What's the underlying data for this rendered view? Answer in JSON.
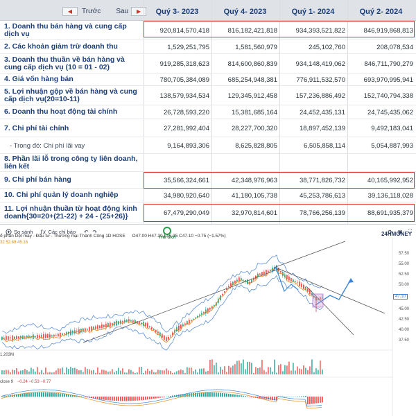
{
  "table": {
    "nav": {
      "prev_label": "Trước",
      "next_label": "Sau",
      "prev_icon": "left-triangle-icon",
      "next_icon": "right-triangle-icon"
    },
    "periods": [
      "Quý 3- 2023",
      "Quý 4- 2023",
      "Quý 1- 2024",
      "Quý 2- 2024"
    ],
    "rows": [
      {
        "label": "1. Doanh thu bán hàng và cung cấp dịch vụ",
        "values": [
          "920,814,570,418",
          "816,182,421,818",
          "934,393,521,822",
          "846,919,868,813"
        ],
        "highlight": true
      },
      {
        "label": "2. Các khoản giảm trừ doanh thu",
        "values": [
          "1,529,251,795",
          "1,581,560,979",
          "245,102,760",
          "208,078,534"
        ]
      },
      {
        "label": "3. Doanh thu thuần về bán hàng và cung cấp dịch vụ (10 = 01 - 02)",
        "values": [
          "919,285,318,623",
          "814,600,860,839",
          "934,148,419,062",
          "846,711,790,279"
        ]
      },
      {
        "label": "4. Giá vốn hàng bán",
        "values": [
          "780,705,384,089",
          "685,254,948,381",
          "776,911,532,570",
          "693,970,995,941"
        ]
      },
      {
        "label": "5. Lợi nhuận gộp về bán hàng và cung cấp dịch vụ(20=10-11)",
        "values": [
          "138,579,934,534",
          "129,345,912,458",
          "157,236,886,492",
          "152,740,794,338"
        ]
      },
      {
        "label": "6. Doanh thu hoạt động tài chính",
        "values": [
          "26,728,593,220",
          "15,381,685,164",
          "24,452,435,131",
          "24,745,435,062"
        ]
      },
      {
        "label": "7. Chi phí tài chính",
        "values": [
          "27,281,992,404",
          "28,227,700,320",
          "18,897,452,139",
          "9,492,183,041"
        ]
      },
      {
        "label": "- Trong đó: Chi phí lãi vay",
        "values": [
          "9,164,893,306",
          "8,625,828,805",
          "6,505,858,114",
          "5,054,887,993"
        ],
        "sub": true
      },
      {
        "label": "8. Phần lãi lỗ trong công ty liên doanh, liên kết",
        "values": [
          "",
          "",
          "",
          ""
        ]
      },
      {
        "label": "9. Chi phí bán hàng",
        "values": [
          "35,566,324,661",
          "42,348,976,963",
          "38,771,826,732",
          "40,165,992,952"
        ],
        "highlight": true
      },
      {
        "label": "10. Chi phí quản lý doanh nghiệp",
        "values": [
          "34,980,920,640",
          "41,180,105,738",
          "45,253,786,613",
          "39,136,118,028"
        ]
      },
      {
        "label": "11. Lợi nhuận thuần từ hoạt động kinh doanh{30=20+(21-22) + 24 - (25+26)}",
        "values": [
          "67,479,290,049",
          "32,970,814,601",
          "78,766,256,139",
          "88,691,935,379"
        ],
        "highlight": true
      }
    ]
  },
  "chart": {
    "toolbar": {
      "compare_label": "So sánh",
      "indicators_label": "Các chỉ báo",
      "compare_icon": "plus-circle-icon",
      "indicators_icon": "function-icon",
      "undo_icon": "undo-icon",
      "redo_icon": "redo-icon",
      "settings_icon": "gear-icon",
      "screenshot_icon": "camera-icon",
      "fullscreen_icon": "fullscreen-icon"
    },
    "brand": "24HMONEY",
    "watermark": "THẾ GIỚI",
    "title_line": "ổ phần Dệt may - Đầu tư - Thương mại Thành Công  1D  HOSE",
    "ohlc": "O47.00 H47.30 L46.35 C47.10 −0.75 (−1.57%)",
    "bb_values": "32  52.69  45.16",
    "volume_label": "1.203M",
    "macd_label": "close 9",
    "macd_values": "−0.24  −0.53  −0.77",
    "last_price": "47.10",
    "price_axis": [
      "57.50",
      "55.00",
      "52.50",
      "50.00",
      "47.50",
      "45.00",
      "42.50",
      "40.00",
      "37.50"
    ],
    "colors": {
      "up": "#26a69a",
      "down": "#ef5350",
      "band": "#5b8fd6",
      "ma": "#e08a1e",
      "trend": "#555555",
      "arrow": "#3b86d6"
    }
  }
}
